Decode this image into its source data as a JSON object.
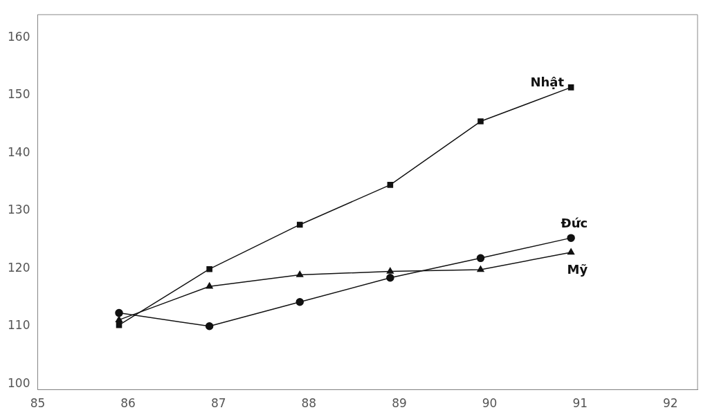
{
  "chart_data": {
    "type": "line",
    "x": [
      85.9,
      86.9,
      87.9,
      88.9,
      89.9,
      90.9
    ],
    "xlim": [
      85,
      92.3
    ],
    "xticks": [
      85,
      86,
      87,
      88,
      89,
      90,
      91,
      92
    ],
    "ylim": [
      99,
      164
    ],
    "yticks": [
      100,
      110,
      120,
      130,
      140,
      150,
      160
    ],
    "grid": false,
    "legend": false,
    "line_style": "solid",
    "series": [
      {
        "name": "Nhật",
        "color": "#111111",
        "marker": "square",
        "values": [
          110.2,
          119.9,
          127.6,
          134.5,
          145.5,
          151.4
        ]
      },
      {
        "name": "Đức",
        "color": "#111111",
        "marker": "circle",
        "values": [
          112.3,
          110.0,
          114.2,
          118.4,
          121.8,
          125.3
        ]
      },
      {
        "name": "Mỹ",
        "color": "#111111",
        "marker": "triangle",
        "values": [
          111.1,
          116.9,
          118.9,
          119.5,
          119.8,
          122.8
        ]
      }
    ]
  }
}
